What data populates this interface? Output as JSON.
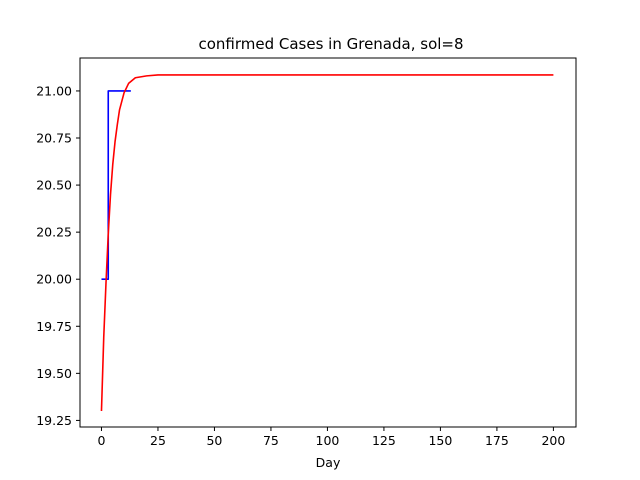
{
  "chart_data": {
    "type": "line",
    "title": "confirmed Cases in Grenada, sol=8",
    "xlabel": "Day",
    "ylabel": "",
    "xlim": [
      -9.5,
      210
    ],
    "ylim": [
      19.215,
      21.175
    ],
    "x_ticks": [
      0,
      25,
      50,
      75,
      100,
      125,
      150,
      175,
      200
    ],
    "x_tick_labels": [
      "0",
      "25",
      "50",
      "75",
      "100",
      "125",
      "150",
      "175",
      "200"
    ],
    "y_ticks": [
      19.25,
      19.5,
      19.75,
      20.0,
      20.25,
      20.5,
      20.75,
      21.0
    ],
    "y_tick_labels": [
      "19.25",
      "19.50",
      "19.75",
      "20.00",
      "20.25",
      "20.50",
      "20.75",
      "21.00"
    ],
    "grid": false,
    "series": [
      {
        "color": "#0000ff",
        "style": "step",
        "x": [
          0,
          1,
          2,
          3,
          4,
          5,
          6,
          7,
          8,
          9,
          10,
          11,
          12,
          13
        ],
        "values": [
          20,
          20,
          20,
          21,
          21,
          21,
          21,
          21,
          21,
          21,
          21,
          21,
          21,
          21
        ]
      },
      {
        "color": "#ff0000",
        "style": "line",
        "x": [
          0,
          1,
          2,
          3,
          4,
          5,
          6,
          7,
          8,
          10,
          12,
          15,
          20,
          25,
          30,
          50,
          75,
          100,
          125,
          150,
          175,
          200
        ],
        "values": [
          19.3,
          19.69,
          19.98,
          20.24,
          20.45,
          20.61,
          20.73,
          20.82,
          20.9,
          20.99,
          21.04,
          21.07,
          21.08,
          21.085,
          21.085,
          21.085,
          21.085,
          21.085,
          21.085,
          21.085,
          21.085,
          21.085
        ]
      }
    ]
  }
}
